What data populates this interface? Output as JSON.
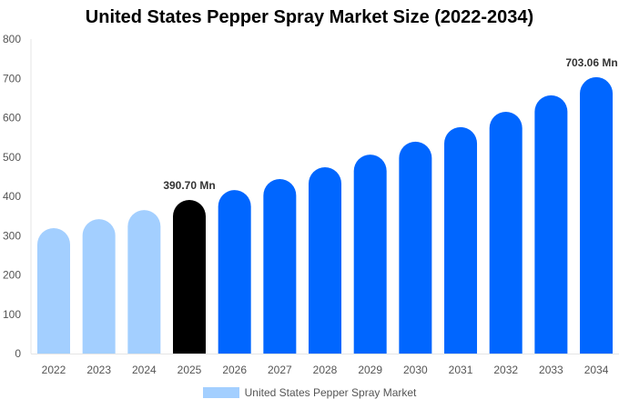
{
  "chart_data": {
    "type": "bar",
    "title": "United States Pepper Spray Market Size (2022-2034)",
    "categories": [
      "2022",
      "2023",
      "2024",
      "2025",
      "2026",
      "2027",
      "2028",
      "2029",
      "2030",
      "2031",
      "2032",
      "2033",
      "2034"
    ],
    "series": [
      {
        "name": "United States Pepper Spray Market",
        "values": [
          319,
          342,
          365,
          390.7,
          416,
          444,
          474,
          506,
          539,
          576,
          615,
          657,
          703.06
        ]
      }
    ],
    "data_labels": {
      "3": "390.70 Mn",
      "12": "703.06 Mn"
    },
    "ylim": [
      0,
      800
    ],
    "yticks": [
      0,
      100,
      200,
      300,
      400,
      500,
      600,
      700,
      800
    ],
    "grid": false,
    "legend": "bottom",
    "colors": {
      "historical": "#a3cfff",
      "base_year": "#000000",
      "forecast": "#0066ff"
    }
  }
}
